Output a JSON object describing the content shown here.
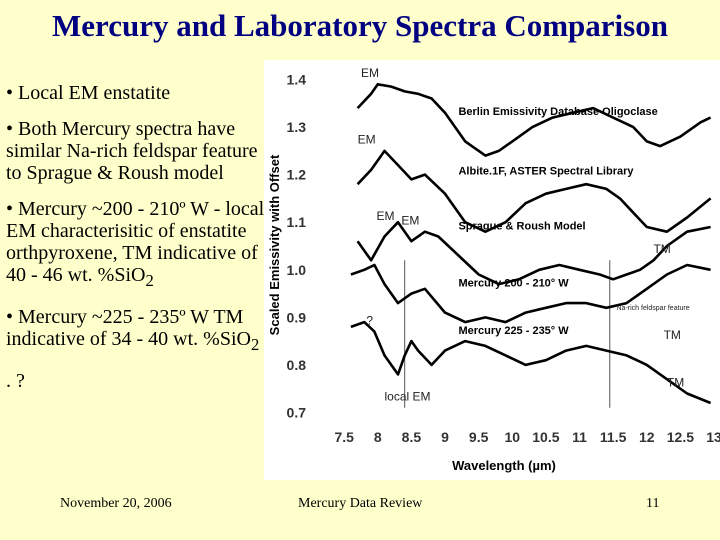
{
  "slide": {
    "title": "Mercury and Laboratory Spectra Comparison",
    "bullets": [
      {
        "text": "• Local EM enstatite"
      },
      {
        "text": "• Both Mercury spectra have similar Na-rich feldspar feature to Sprague & Roush model"
      },
      {
        "text": "• Mercury ~200 - 210º W - local EM characterisitic of enstatite orthpyroxene, TM indicative of 40 - 46 wt. %SiO",
        "sub": "2"
      },
      {
        "text": "• Mercury ~225 - 235º W TM indicative of 34 - 40 wt. %SiO",
        "sub": "2"
      },
      {
        "text": ". ?"
      }
    ],
    "footer": {
      "date": "November 20, 2006",
      "center": "Mercury Data Review",
      "page": "11"
    }
  },
  "chart_data": {
    "type": "line",
    "xlabel": "Wavelength (µm)",
    "ylabel": "Scaled Emissivity with Offset",
    "xlim": [
      7.2,
      13.0
    ],
    "ylim": [
      0.68,
      1.42
    ],
    "x_ticks": [
      7.5,
      8,
      8.5,
      9,
      9.5,
      10,
      10.5,
      11,
      11.5,
      12,
      12.5,
      13
    ],
    "x_tick_labels": [
      "7.5",
      "8",
      "8.5",
      "9",
      "9.5",
      "10",
      "10.5",
      "11",
      "11.5",
      "12",
      "12.5",
      "13"
    ],
    "y_ticks": [
      0.7,
      0.8,
      0.9,
      1.0,
      1.1,
      1.2,
      1.3,
      1.4
    ],
    "y_tick_labels": [
      "0.7",
      "0.8",
      "0.9",
      "1.0",
      "1.1",
      "1.2",
      "1.3",
      "1.4"
    ],
    "grid": false,
    "series": [
      {
        "name": "Berlin Emissivity Database Oligoclase",
        "color": "#000000",
        "x": [
          7.7,
          7.9,
          8.0,
          8.2,
          8.4,
          8.6,
          8.8,
          9.0,
          9.3,
          9.6,
          9.8,
          10.0,
          10.3,
          10.6,
          10.9,
          11.2,
          11.5,
          11.8,
          12.0,
          12.2,
          12.5,
          12.8,
          12.95
        ],
        "y": [
          1.34,
          1.37,
          1.39,
          1.385,
          1.375,
          1.37,
          1.36,
          1.33,
          1.27,
          1.24,
          1.25,
          1.27,
          1.3,
          1.32,
          1.33,
          1.34,
          1.32,
          1.3,
          1.27,
          1.26,
          1.28,
          1.31,
          1.32
        ]
      },
      {
        "name": "Albite.1F, ASTER Spectral Library",
        "color": "#000000",
        "x": [
          7.7,
          7.9,
          8.1,
          8.3,
          8.5,
          8.7,
          9.0,
          9.3,
          9.6,
          9.9,
          10.2,
          10.5,
          10.8,
          11.1,
          11.4,
          11.6,
          11.8,
          12.0,
          12.3,
          12.6,
          12.95
        ],
        "y": [
          1.18,
          1.21,
          1.25,
          1.22,
          1.19,
          1.2,
          1.16,
          1.1,
          1.08,
          1.1,
          1.14,
          1.16,
          1.17,
          1.18,
          1.17,
          1.15,
          1.12,
          1.09,
          1.08,
          1.11,
          1.15
        ]
      },
      {
        "name": "Sprague & Roush Model",
        "color": "#000000",
        "x": [
          7.7,
          7.9,
          8.1,
          8.3,
          8.5,
          8.7,
          8.9,
          9.2,
          9.5,
          9.8,
          10.1,
          10.4,
          10.7,
          11.0,
          11.3,
          11.5,
          11.7,
          11.9,
          12.1,
          12.3,
          12.6,
          12.95
        ],
        "y": [
          1.06,
          1.02,
          1.07,
          1.1,
          1.06,
          1.08,
          1.07,
          1.03,
          0.99,
          0.97,
          0.98,
          1.0,
          1.01,
          1.0,
          0.99,
          0.98,
          0.99,
          1.0,
          1.02,
          1.05,
          1.08,
          1.09
        ]
      },
      {
        "name": "Mercury 200 - 210° W",
        "color": "#000000",
        "x": [
          7.6,
          7.8,
          7.95,
          8.1,
          8.3,
          8.5,
          8.7,
          9.0,
          9.3,
          9.6,
          9.9,
          10.2,
          10.5,
          10.8,
          11.1,
          11.4,
          11.7,
          12.0,
          12.3,
          12.6,
          12.95
        ],
        "y": [
          0.99,
          1.0,
          1.01,
          0.97,
          0.93,
          0.95,
          0.96,
          0.91,
          0.89,
          0.9,
          0.89,
          0.91,
          0.92,
          0.93,
          0.93,
          0.92,
          0.93,
          0.96,
          0.99,
          1.01,
          1.0
        ]
      },
      {
        "name": "Mercury 225 - 235° W",
        "color": "#000000",
        "x": [
          7.6,
          7.8,
          7.95,
          8.1,
          8.3,
          8.4,
          8.5,
          8.6,
          8.8,
          9.0,
          9.3,
          9.6,
          9.9,
          10.2,
          10.5,
          10.8,
          11.1,
          11.4,
          11.7,
          12.0,
          12.3,
          12.6,
          12.95
        ],
        "y": [
          0.88,
          0.89,
          0.87,
          0.82,
          0.78,
          0.82,
          0.85,
          0.83,
          0.8,
          0.83,
          0.85,
          0.84,
          0.82,
          0.8,
          0.81,
          0.83,
          0.84,
          0.83,
          0.82,
          0.8,
          0.77,
          0.74,
          0.72
        ]
      }
    ],
    "series_labels": [
      {
        "text": "Berlin Emissivity Database Oligoclase",
        "x": 9.2,
        "y": 1.325
      },
      {
        "text": "Albite.1F, ASTER Spectral Library",
        "x": 9.2,
        "y": 1.2
      },
      {
        "text": "Sprague & Roush Model",
        "x": 9.2,
        "y": 1.085
      },
      {
        "text": "Mercury 200 - 210° W",
        "x": 9.2,
        "y": 0.965
      },
      {
        "text": "Mercury 225 - 235° W",
        "x": 9.2,
        "y": 0.865
      }
    ],
    "annotations": [
      {
        "text": "EM",
        "x": 7.75,
        "y": 1.405
      },
      {
        "text": "EM",
        "x": 7.7,
        "y": 1.265
      },
      {
        "text": "EM",
        "x": 7.98,
        "y": 1.105
      },
      {
        "text": "EM",
        "x": 8.35,
        "y": 1.095
      },
      {
        "text": "TM",
        "x": 12.1,
        "y": 1.035
      },
      {
        "text": "TM",
        "x": 12.25,
        "y": 0.855
      },
      {
        "text": "TM",
        "x": 12.3,
        "y": 0.755
      },
      {
        "text": "?",
        "x": 7.83,
        "y": 0.885
      },
      {
        "text": "local EM",
        "x": 8.1,
        "y": 0.725
      },
      {
        "text": "Na-rich feldspar feature",
        "x": 11.55,
        "y": 0.915
      }
    ],
    "reference_lines_x": [
      8.4,
      11.45
    ]
  }
}
